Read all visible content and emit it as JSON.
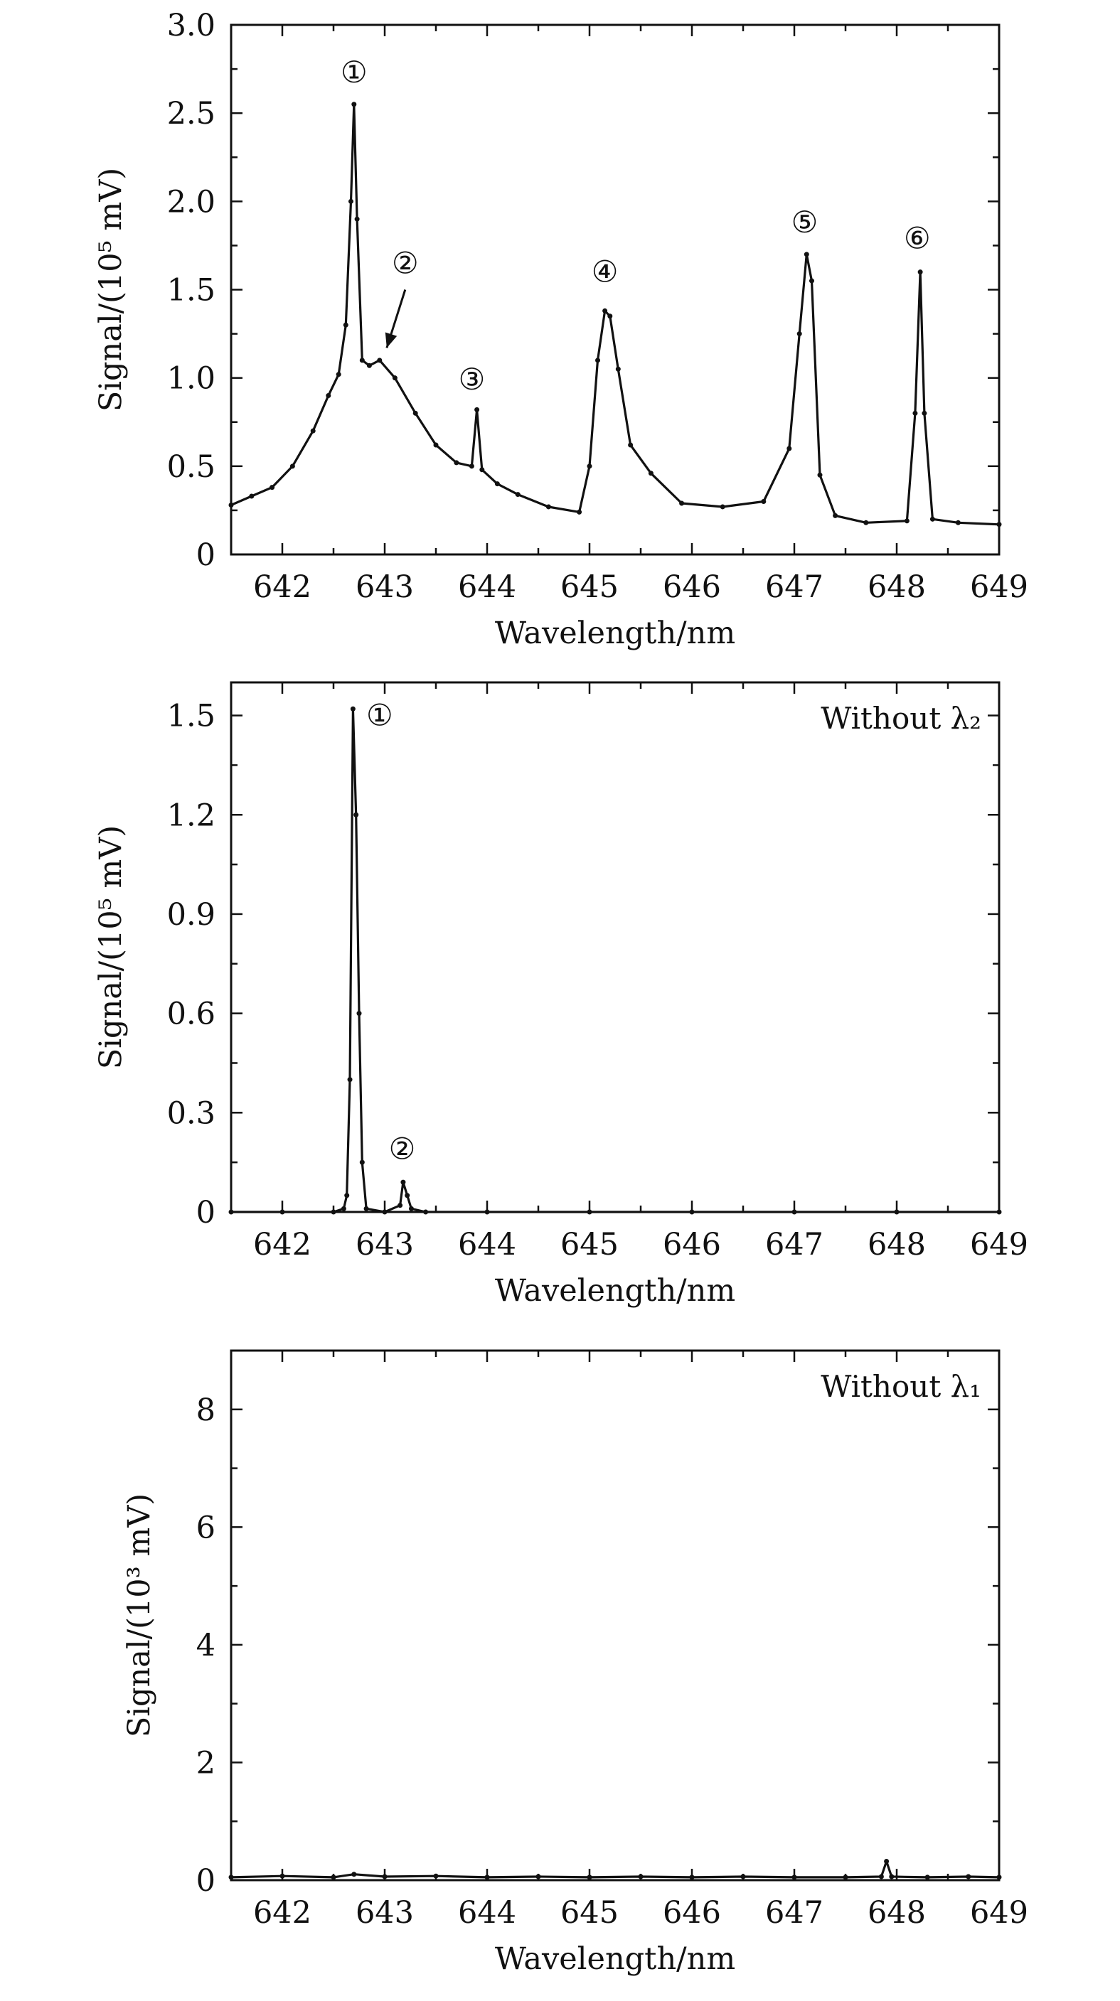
{
  "chart_data": [
    {
      "type": "line",
      "xlabel": "Wavelength/nm",
      "ylabel": "Signal/(10⁵ mV)",
      "xlim": [
        641.5,
        649
      ],
      "ylim": [
        0,
        3.0
      ],
      "xticks": [
        642,
        643,
        644,
        645,
        646,
        647,
        648,
        649
      ],
      "yticks": [
        0,
        0.5,
        1.0,
        1.5,
        2.0,
        2.5,
        3.0
      ],
      "ytick_labels": [
        "0",
        "0.5",
        "1.0",
        "1.5",
        "2.0",
        "2.5",
        "3.0"
      ],
      "inset_label": "",
      "series": [
        {
          "x": [
            641.5,
            641.7,
            641.9,
            642.1,
            642.3,
            642.45,
            642.55,
            642.62,
            642.67,
            642.7,
            642.73,
            642.78,
            642.85,
            642.95,
            643.1,
            643.3,
            643.5,
            643.7,
            643.85,
            643.9,
            643.95,
            644.1,
            644.3,
            644.6,
            644.9,
            645.0,
            645.08,
            645.15,
            645.2,
            645.28,
            645.4,
            645.6,
            645.9,
            646.3,
            646.7,
            646.95,
            647.05,
            647.12,
            647.17,
            647.25,
            647.4,
            647.7,
            648.1,
            648.18,
            648.23,
            648.27,
            648.35,
            648.6,
            649.0
          ],
          "y": [
            0.28,
            0.33,
            0.38,
            0.5,
            0.7,
            0.9,
            1.02,
            1.3,
            2.0,
            2.55,
            1.9,
            1.1,
            1.07,
            1.1,
            1.0,
            0.8,
            0.62,
            0.52,
            0.5,
            0.82,
            0.48,
            0.4,
            0.34,
            0.27,
            0.24,
            0.5,
            1.1,
            1.38,
            1.35,
            1.05,
            0.62,
            0.46,
            0.29,
            0.27,
            0.3,
            0.6,
            1.25,
            1.7,
            1.55,
            0.45,
            0.22,
            0.18,
            0.19,
            0.8,
            1.6,
            0.8,
            0.2,
            0.18,
            0.17
          ]
        }
      ],
      "annotations": [
        {
          "label": "①",
          "x": 642.7,
          "y": 2.73
        },
        {
          "label": "②",
          "x": 643.2,
          "y": 1.65
        },
        {
          "label": "③",
          "x": 643.85,
          "y": 0.99
        },
        {
          "label": "④",
          "x": 645.15,
          "y": 1.6
        },
        {
          "label": "⑤",
          "x": 647.1,
          "y": 1.88
        },
        {
          "label": "⑥",
          "x": 648.2,
          "y": 1.79
        }
      ],
      "arrow": {
        "from": [
          643.2,
          1.5
        ],
        "to": [
          643.02,
          1.17
        ]
      }
    },
    {
      "type": "line",
      "xlabel": "Wavelength/nm",
      "ylabel": "Signal/(10⁵ mV)",
      "xlim": [
        641.5,
        649
      ],
      "ylim": [
        0,
        1.6
      ],
      "xticks": [
        642,
        643,
        644,
        645,
        646,
        647,
        648,
        649
      ],
      "yticks": [
        0,
        0.3,
        0.6,
        0.9,
        1.2,
        1.5
      ],
      "ytick_labels": [
        "0",
        "0.3",
        "0.6",
        "0.9",
        "1.2",
        "1.5"
      ],
      "inset_label": "Without λ₂",
      "series": [
        {
          "x": [
            641.5,
            642.0,
            642.5,
            642.6,
            642.63,
            642.66,
            642.69,
            642.72,
            642.75,
            642.78,
            642.82,
            643.0,
            643.15,
            643.18,
            643.22,
            643.26,
            643.4,
            644.0,
            645.0,
            646.0,
            647.0,
            648.0,
            649.0
          ],
          "y": [
            0.0,
            0.0,
            0.0,
            0.01,
            0.05,
            0.4,
            1.52,
            1.2,
            0.6,
            0.15,
            0.01,
            0.0,
            0.02,
            0.09,
            0.05,
            0.01,
            0.0,
            0.0,
            0.0,
            0.0,
            0.0,
            0.0,
            0.0
          ]
        }
      ],
      "annotations": [
        {
          "label": "①",
          "x": 642.95,
          "y": 1.5
        },
        {
          "label": "②",
          "x": 643.17,
          "y": 0.19
        }
      ]
    },
    {
      "type": "line",
      "xlabel": "Wavelength/nm",
      "ylabel": "Signal/(10³ mV)",
      "xlim": [
        641.5,
        649
      ],
      "ylim": [
        0,
        9.0
      ],
      "xticks": [
        642,
        643,
        644,
        645,
        646,
        647,
        648,
        649
      ],
      "yticks": [
        0,
        2,
        4,
        6,
        8
      ],
      "ytick_labels": [
        "0",
        "2",
        "4",
        "6",
        "8"
      ],
      "inset_label": "Without λ₁",
      "series": [
        {
          "x": [
            641.5,
            642.0,
            642.5,
            642.7,
            643.0,
            643.5,
            644.0,
            644.5,
            645.0,
            645.5,
            646.0,
            646.5,
            647.0,
            647.5,
            647.85,
            647.9,
            647.95,
            648.3,
            648.7,
            649.0
          ],
          "y": [
            0.05,
            0.07,
            0.05,
            0.1,
            0.06,
            0.07,
            0.05,
            0.06,
            0.05,
            0.06,
            0.05,
            0.06,
            0.05,
            0.05,
            0.06,
            0.32,
            0.06,
            0.05,
            0.06,
            0.05
          ]
        }
      ],
      "annotations": []
    }
  ]
}
